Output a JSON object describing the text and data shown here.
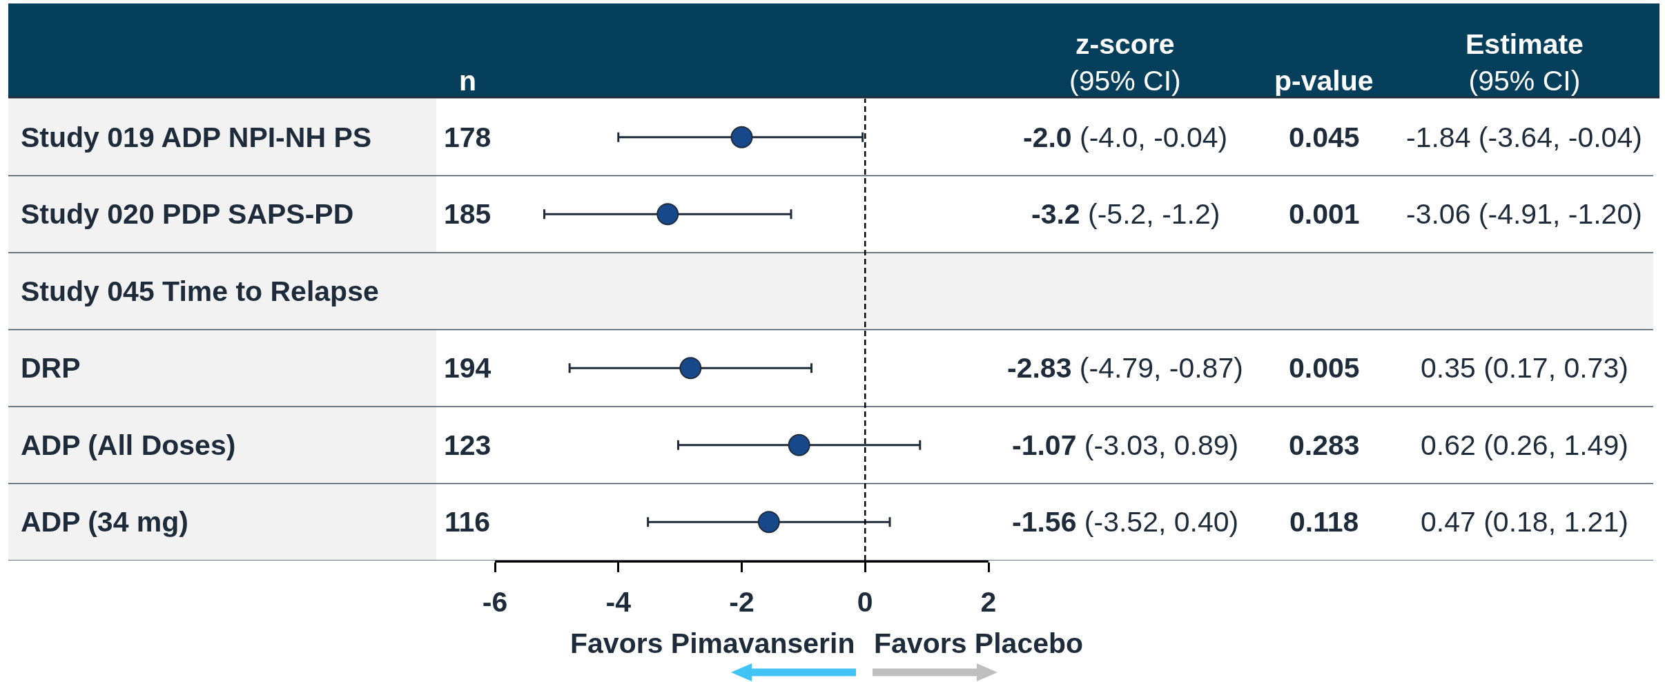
{
  "chart_data": {
    "type": "scatter",
    "orientation": "horizontal",
    "categories": [
      "Study 019 ADP NPI-NH PS",
      "Study 020 PDP SAPS-PD",
      "Study 045 Time to Relapse",
      "DRP",
      "ADP (All Doses)",
      "ADP (34 mg)"
    ],
    "values": [
      -2.0,
      -3.2,
      null,
      -2.83,
      -1.07,
      -1.56
    ],
    "errors": [
      [
        -4.0,
        -0.04
      ],
      [
        -5.2,
        -1.2
      ],
      null,
      [
        -4.79,
        -0.87
      ],
      [
        -3.03,
        0.89
      ],
      [
        -3.52,
        0.4
      ]
    ],
    "color": "#17498a",
    "marker": "circle",
    "xlim": [
      -6,
      2
    ],
    "xticks": [
      -6,
      -4,
      -2,
      0,
      2
    ],
    "ref_lines": [
      {
        "axis": "x",
        "value": 0,
        "line_style": "dashed",
        "color": "#000000"
      }
    ],
    "annotations": [
      "n",
      "z-score\n(95% CI)",
      "p-value",
      "Estimate\n(95% CI)",
      "Favors Pimavanserin",
      "Favors Placebo",
      "178",
      "-2.0 (-4.0, -0.04)",
      "0.045",
      "-1.84 (-3.64, -0.04)",
      "185",
      "-3.2 (-5.2, -1.2)",
      "0.001",
      "-3.06 (-4.91, -1.20)",
      "194",
      "-2.83 (-4.79, -0.87)",
      "0.005",
      "0.35 (0.17, 0.73)",
      "123",
      "-1.07 (-3.03, 0.89)",
      "0.283",
      "0.62 (0.26, 1.49)",
      "116",
      "-1.56 (-3.52, 0.40)",
      "0.118",
      "0.47 (0.18, 1.21)"
    ]
  }
}
